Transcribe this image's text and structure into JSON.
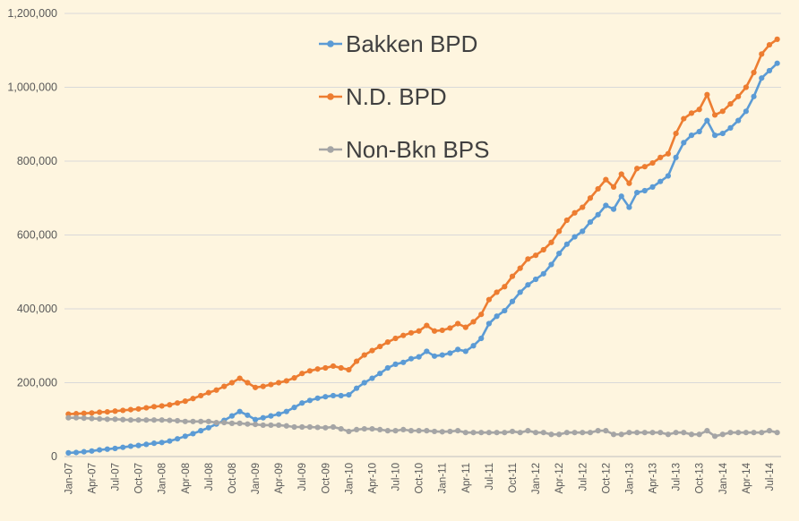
{
  "chart_data": {
    "type": "line",
    "title": "",
    "xlabel": "",
    "ylabel": "",
    "ylim": [
      0,
      1200000
    ],
    "y_ticks": [
      0,
      200000,
      400000,
      600000,
      800000,
      1000000,
      1200000
    ],
    "y_tick_labels": [
      "0",
      "200,000",
      "400,000",
      "600,000",
      "800,000",
      "1,000,000",
      "1,200,000"
    ],
    "grid": "horizontal",
    "legend_position": "top-center",
    "background": "#FEF5DF",
    "x_tick_labels": [
      "Jan-07",
      "Apr-07",
      "Jul-07",
      "Oct-07",
      "Jan-08",
      "Apr-08",
      "Jul-08",
      "Oct-08",
      "Jan-09",
      "Apr-09",
      "Jul-09",
      "Oct-09",
      "Jan-10",
      "Apr-10",
      "Jul-10",
      "Oct-10",
      "Jan-11",
      "Apr-11",
      "Jul-11",
      "Oct-11",
      "Jan-12",
      "Apr-12",
      "Jul-12",
      "Oct-12",
      "Jan-13",
      "Apr-13",
      "Jul-13",
      "Oct-13",
      "Jan-14",
      "Apr-14",
      "Jul-14"
    ],
    "x_labels_every": 3,
    "series": [
      {
        "name": "Bakken BPD",
        "color": "#5B9BD5",
        "values": [
          10000,
          11000,
          13000,
          15000,
          18000,
          20000,
          22000,
          25000,
          28000,
          30000,
          33000,
          36000,
          38000,
          42000,
          48000,
          55000,
          62000,
          70000,
          78000,
          88000,
          98000,
          110000,
          122000,
          112000,
          100000,
          105000,
          110000,
          115000,
          122000,
          133000,
          145000,
          152000,
          158000,
          162000,
          165000,
          165000,
          167000,
          185000,
          200000,
          212000,
          225000,
          240000,
          250000,
          255000,
          265000,
          270000,
          285000,
          272000,
          275000,
          280000,
          290000,
          285000,
          300000,
          320000,
          360000,
          380000,
          395000,
          420000,
          445000,
          465000,
          480000,
          495000,
          520000,
          550000,
          575000,
          595000,
          610000,
          635000,
          655000,
          680000,
          670000,
          705000,
          675000,
          715000,
          720000,
          730000,
          745000,
          760000,
          810000,
          850000,
          870000,
          880000,
          910000,
          870000,
          875000,
          890000,
          910000,
          935000,
          975000,
          1025000,
          1045000,
          1065000
        ]
      },
      {
        "name": "N.D. BPD",
        "color": "#ED7D31",
        "values": [
          115000,
          116000,
          117000,
          118000,
          120000,
          121000,
          123000,
          125000,
          127000,
          129000,
          132000,
          135000,
          137000,
          140000,
          145000,
          150000,
          157000,
          165000,
          173000,
          180000,
          190000,
          200000,
          212000,
          200000,
          187000,
          190000,
          195000,
          200000,
          205000,
          213000,
          225000,
          232000,
          237000,
          240000,
          245000,
          240000,
          235000,
          258000,
          275000,
          287000,
          298000,
          310000,
          320000,
          328000,
          335000,
          340000,
          355000,
          340000,
          342000,
          348000,
          360000,
          350000,
          365000,
          385000,
          425000,
          445000,
          460000,
          488000,
          510000,
          535000,
          545000,
          560000,
          580000,
          610000,
          640000,
          660000,
          675000,
          700000,
          725000,
          750000,
          730000,
          765000,
          740000,
          780000,
          785000,
          795000,
          810000,
          820000,
          875000,
          915000,
          930000,
          940000,
          980000,
          925000,
          935000,
          955000,
          975000,
          1000000,
          1040000,
          1090000,
          1115000,
          1130000
        ]
      },
      {
        "name": "Non-Bkn BPS",
        "color": "#A5A5A5",
        "values": [
          105000,
          105000,
          104000,
          103000,
          102000,
          101000,
          101000,
          100000,
          99000,
          99000,
          99000,
          99000,
          99000,
          98000,
          97000,
          95000,
          95000,
          95000,
          95000,
          92000,
          92000,
          90000,
          90000,
          88000,
          87000,
          85000,
          85000,
          85000,
          83000,
          80000,
          80000,
          80000,
          79000,
          78000,
          80000,
          75000,
          68000,
          73000,
          75000,
          75000,
          73000,
          70000,
          70000,
          73000,
          70000,
          70000,
          70000,
          68000,
          67000,
          68000,
          70000,
          65000,
          65000,
          65000,
          65000,
          65000,
          65000,
          68000,
          65000,
          70000,
          65000,
          65000,
          60000,
          60000,
          65000,
          65000,
          65000,
          65000,
          70000,
          70000,
          60000,
          60000,
          65000,
          65000,
          65000,
          65000,
          65000,
          60000,
          65000,
          65000,
          60000,
          60000,
          70000,
          55000,
          60000,
          65000,
          65000,
          65000,
          65000,
          65000,
          70000,
          65000
        ]
      }
    ]
  }
}
